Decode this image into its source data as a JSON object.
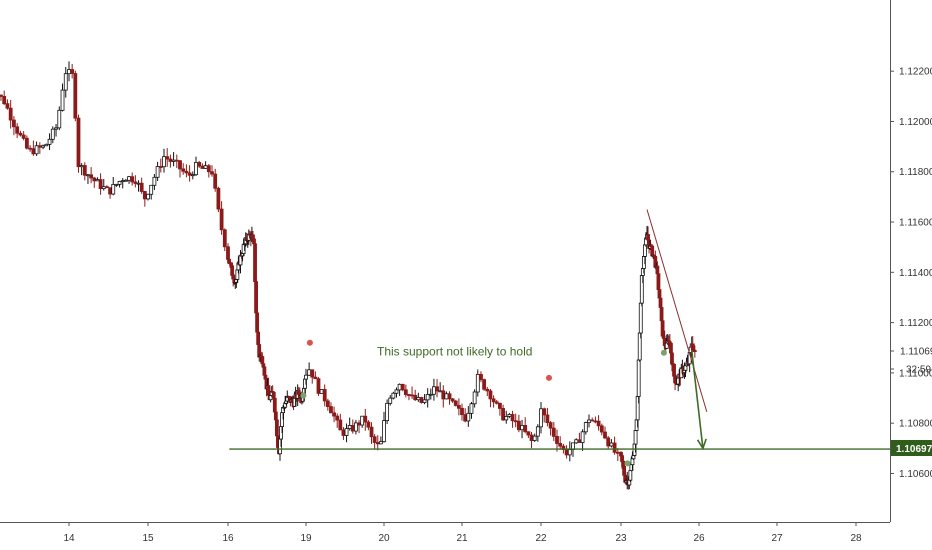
{
  "chart_data": {
    "type": "candlestick",
    "title": "",
    "xlabel": "",
    "ylabel": "",
    "ylim": [
      1.105,
      1.123
    ],
    "y_ticks": [
      "1.12200",
      "1.12000",
      "1.11800",
      "1.11600",
      "1.11400",
      "1.11200",
      "1.11000",
      "1.10800",
      "1.10600"
    ],
    "x_ticks": [
      "14",
      "15",
      "16",
      "19",
      "20",
      "21",
      "22",
      "23",
      "26",
      "27",
      "28"
    ],
    "last_price": "1.11069",
    "countdown": "32:59",
    "support_level": "1.10697",
    "annotation": "This support not likely to hold",
    "colors": {
      "up": "#111111",
      "down": "#8b1a1a",
      "support_line": "#3e6b25",
      "trendline": "#8b2f2f",
      "arrow": "#3e6b25",
      "pivot_high": "#d9534f",
      "pivot_low": "#7aa36a"
    },
    "close_path": [
      [
        13.0,
        1.1215
      ],
      [
        13.2,
        1.1208
      ],
      [
        13.35,
        1.1197
      ],
      [
        13.5,
        1.1188
      ],
      [
        13.7,
        1.119
      ],
      [
        13.85,
        1.1198
      ],
      [
        13.95,
        1.122
      ],
      [
        14.05,
        1.1218
      ],
      [
        14.12,
        1.1183
      ],
      [
        14.3,
        1.1177
      ],
      [
        14.5,
        1.1172
      ],
      [
        14.7,
        1.1178
      ],
      [
        14.85,
        1.1177
      ],
      [
        14.95,
        1.1169
      ],
      [
        15.05,
        1.1176
      ],
      [
        15.2,
        1.1186
      ],
      [
        15.35,
        1.1183
      ],
      [
        15.5,
        1.1178
      ],
      [
        15.6,
        1.1182
      ],
      [
        15.8,
        1.118
      ],
      [
        15.9,
        1.116
      ],
      [
        16.0,
        1.1146
      ],
      [
        16.15,
        1.114
      ],
      [
        16.3,
        1.1136
      ],
      [
        16.45,
        1.1145
      ],
      [
        16.6,
        1.115
      ],
      [
        16.75,
        1.1154
      ],
      [
        16.9,
        1.1155
      ],
      [
        17.0,
        1.115
      ],
      [
        17.1,
        1.1118
      ],
      [
        17.2,
        1.1107
      ],
      [
        17.35,
        1.1105
      ],
      [
        17.45,
        1.1096
      ],
      [
        17.6,
        1.109
      ],
      [
        17.75,
        1.1092
      ],
      [
        17.85,
        1.108
      ],
      [
        17.95,
        1.1068
      ],
      [
        18.1,
        1.1086
      ],
      [
        18.3,
        1.109
      ],
      [
        18.5,
        1.1088
      ],
      [
        18.7,
        1.1092
      ],
      [
        18.85,
        1.109
      ],
      [
        18.95,
        1.1098
      ],
      [
        19.05,
        1.1102
      ],
      [
        19.15,
        1.1094
      ],
      [
        19.3,
        1.1087
      ],
      [
        19.45,
        1.1076
      ],
      [
        19.6,
        1.1078
      ],
      [
        19.75,
        1.1082
      ],
      [
        19.85,
        1.1073
      ],
      [
        19.95,
        1.107
      ],
      [
        20.05,
        1.109
      ],
      [
        20.2,
        1.1096
      ],
      [
        20.35,
        1.109
      ],
      [
        20.5,
        1.1088
      ],
      [
        20.65,
        1.1094
      ],
      [
        20.8,
        1.109
      ],
      [
        20.95,
        1.1085
      ],
      [
        21.05,
        1.1082
      ],
      [
        21.2,
        1.1098
      ],
      [
        21.35,
        1.1092
      ],
      [
        21.5,
        1.1083
      ],
      [
        21.6,
        1.1082
      ],
      [
        21.75,
        1.1078
      ],
      [
        21.9,
        1.1072
      ],
      [
        22.0,
        1.1085
      ],
      [
        22.15,
        1.1076
      ],
      [
        22.3,
        1.1068
      ],
      [
        22.45,
        1.1072
      ],
      [
        22.6,
        1.1082
      ],
      [
        22.75,
        1.1078
      ],
      [
        22.85,
        1.1072
      ],
      [
        22.95,
        1.1067
      ],
      [
        23.05,
        1.1064
      ],
      [
        23.15,
        1.1058
      ],
      [
        23.3,
        1.1057
      ],
      [
        23.45,
        1.1066
      ],
      [
        23.6,
        1.108
      ],
      [
        23.7,
        1.111
      ],
      [
        23.8,
        1.114
      ],
      [
        23.9,
        1.1148
      ],
      [
        24.0,
        1.1155
      ],
      [
        24.1,
        1.115
      ],
      [
        24.2,
        1.1148
      ],
      [
        24.3,
        1.1145
      ],
      [
        24.4,
        1.1138
      ],
      [
        24.5,
        1.1128
      ],
      [
        24.55,
        1.112
      ],
      [
        24.65,
        1.1112
      ],
      [
        24.75,
        1.111
      ],
      [
        24.85,
        1.1114
      ],
      [
        24.95,
        1.1106
      ],
      [
        25.05,
        1.1098
      ],
      [
        25.15,
        1.1096
      ],
      [
        25.3,
        1.11
      ],
      [
        25.45,
        1.1102
      ],
      [
        25.6,
        1.1104
      ],
      [
        25.72,
        1.1112
      ],
      [
        25.85,
        1.1107
      ]
    ],
    "trendline": [
      [
        24.0,
        1.1165
      ],
      [
        26.1,
        1.10845
      ]
    ],
    "forecast_arrow": [
      [
        25.72,
        1.1109
      ],
      [
        26.05,
        1.107
      ]
    ],
    "pivot_highs": [
      [
        19.05,
        1.1112
      ],
      [
        22.1,
        1.1098
      ]
    ],
    "pivot_lows": [
      [
        18.9,
        1.1091
      ],
      [
        23.25,
        1.1064
      ],
      [
        24.65,
        1.1108
      ]
    ],
    "annotation_anchor": [
      20.0,
      1.11085
    ]
  }
}
